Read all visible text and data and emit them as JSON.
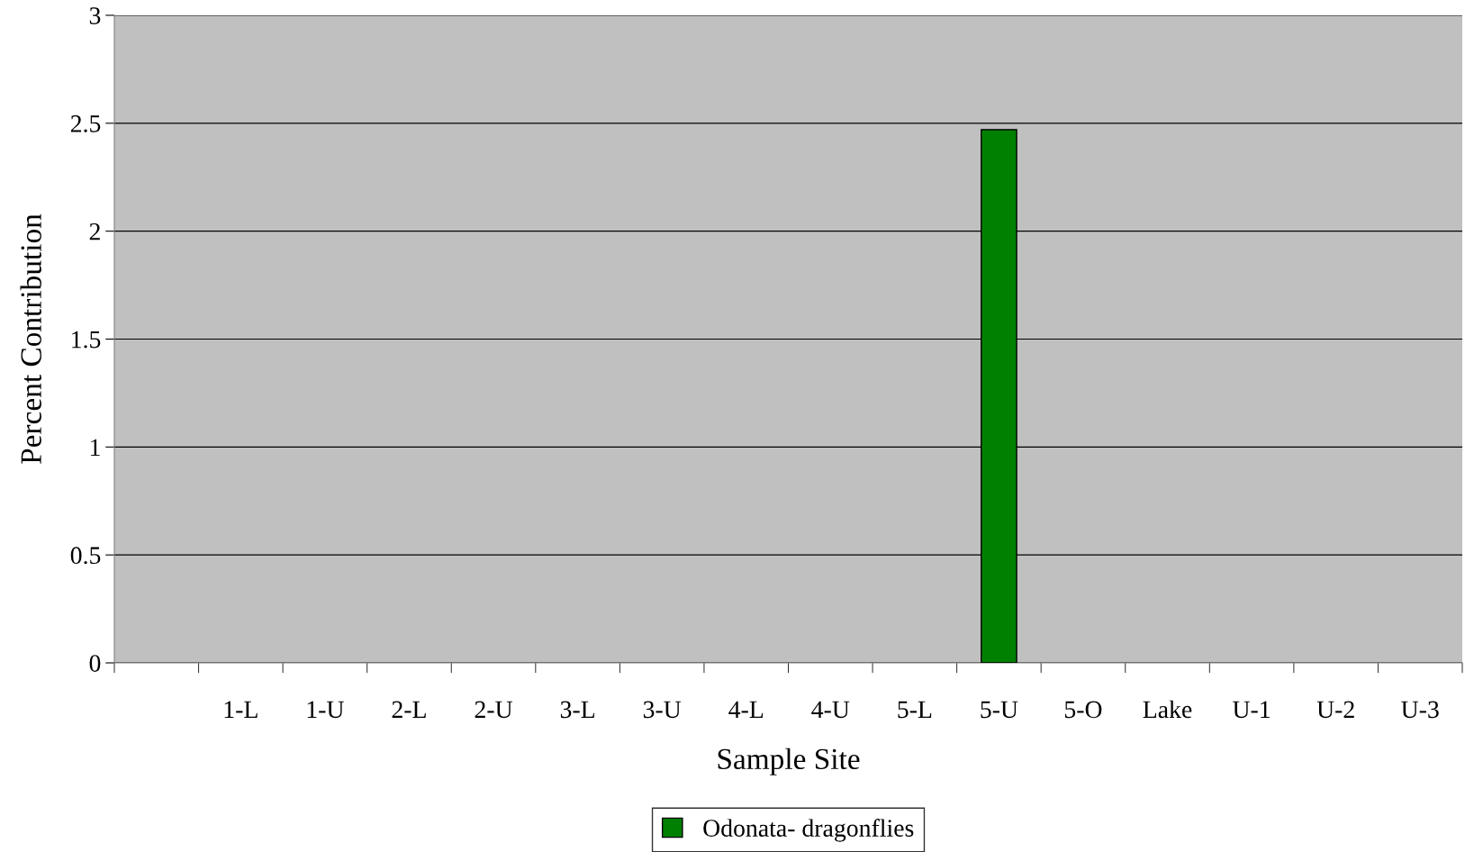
{
  "chart_data": {
    "type": "bar",
    "xlabel": "Sample Site",
    "ylabel": "Percent Contribution",
    "categories": [
      null,
      "1-L",
      "1-U",
      "2-L",
      "2-U",
      "3-L",
      "3-U",
      "4-L",
      "4-U",
      "5-L",
      "5-U",
      "5-O",
      "Lake",
      "U-1",
      "U-2",
      "U-3"
    ],
    "series": [
      {
        "name": "Odonata- dragonflies",
        "color": "#008000",
        "values": [
          0,
          0,
          0,
          0,
          0,
          0,
          0,
          0,
          0,
          0,
          2.47,
          0,
          0,
          0,
          0,
          0
        ]
      }
    ],
    "ylim": [
      0,
      3
    ],
    "yticks": [
      0,
      0.5,
      1,
      1.5,
      2,
      2.5,
      3
    ],
    "grid": "y",
    "legend": "bottom"
  }
}
